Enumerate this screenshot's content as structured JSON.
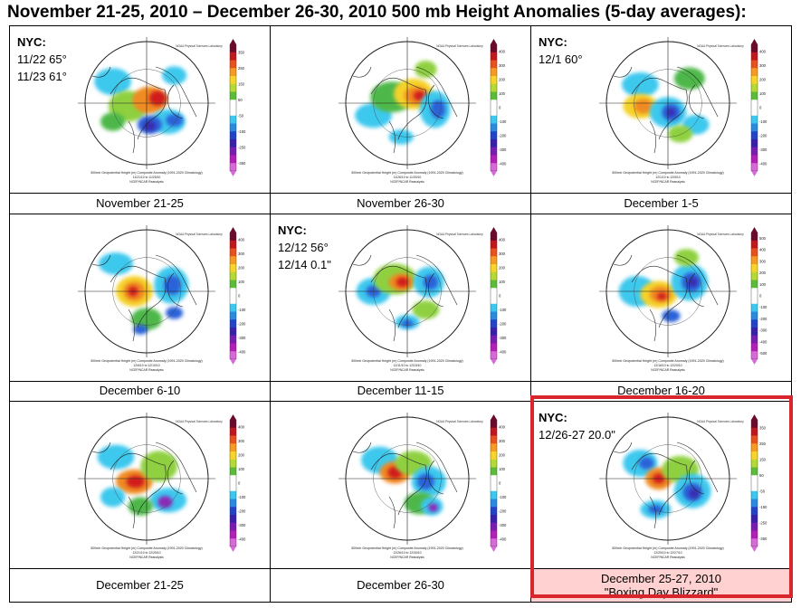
{
  "title": "November 21-25, 2010 – December 26-30, 2010 500 mb Height Anomalies (5-day averages):",
  "panels": [
    {
      "caption": "November 21-25",
      "nyc": {
        "header": "NYC:",
        "lines": [
          "11/22 65°",
          "11/23 61°"
        ]
      },
      "credit": "NOAA Physical Sciences Laboratory",
      "footer": [
        "500mb Geopotential Height (m) Composite Anomaly (1991-2020 Climatology)",
        "11/21/10 to 11/25/10",
        "NCEP/NCAR Reanalysis"
      ],
      "scale": [
        "350",
        "250",
        "150",
        "50",
        "-50",
        "-150",
        "-250",
        "-350"
      ]
    },
    {
      "caption": "November 26-30",
      "nyc": null,
      "credit": "NOAA Physical Sciences Laboratory",
      "footer": [
        "500mb Geopotential Height (m) Composite Anomaly (1991-2020 Climatology)",
        "11/26/10 to 11/30/10",
        "NCEP/NCAR Reanalysis"
      ],
      "scale": [
        "400",
        "300",
        "200",
        "100",
        "0",
        "-100",
        "-200",
        "-300",
        "-400"
      ]
    },
    {
      "caption": "December 1-5",
      "nyc": {
        "header": "NYC:",
        "lines": [
          "12/1 60°"
        ]
      },
      "credit": "NOAA Physical Sciences Laboratory",
      "footer": [
        "500mb Geopotential Height (m) Composite Anomaly (1991-2020 Climatology)",
        "12/1/10 to 12/5/10",
        "NCEP/NCAR Reanalysis"
      ],
      "scale": [
        "400",
        "300",
        "200",
        "100",
        "0",
        "-100",
        "-200",
        "-300",
        "-400"
      ]
    },
    {
      "caption": "December 6-10",
      "nyc": null,
      "credit": "NOAA Physical Sciences Laboratory",
      "footer": [
        "500mb Geopotential Height (m) Composite Anomaly (1991-2020 Climatology)",
        "12/6/10 to 12/10/10",
        "NCEP/NCAR Reanalysis"
      ],
      "scale": [
        "400",
        "300",
        "200",
        "100",
        "0",
        "-100",
        "-200",
        "-300",
        "-400"
      ]
    },
    {
      "caption": "December 11-15",
      "nyc": {
        "header": "NYC:",
        "lines": [
          "12/12 56°",
          "12/14 0.1\""
        ]
      },
      "credit": "NOAA Physical Sciences Laboratory",
      "footer": [
        "500mb Geopotential Height (m) Composite Anomaly (1991-2020 Climatology)",
        "12/11/10 to 12/15/10",
        "NCEP/NCAR Reanalysis"
      ],
      "scale": [
        "400",
        "300",
        "200",
        "100",
        "0",
        "-100",
        "-200",
        "-300",
        "-400"
      ]
    },
    {
      "caption": "December 16-20",
      "nyc": null,
      "credit": "NOAA Physical Sciences Laboratory",
      "footer": [
        "500mb Geopotential Height (m) Composite Anomaly (1991-2020 Climatology)",
        "12/16/10 to 12/20/10",
        "NCEP/NCAR Reanalysis"
      ],
      "scale": [
        "500",
        "400",
        "300",
        "200",
        "100",
        "0",
        "-100",
        "-200",
        "-300",
        "-400",
        "-500"
      ]
    },
    {
      "caption": "December 21-25",
      "nyc": null,
      "credit": "NOAA Physical Sciences Laboratory",
      "footer": [
        "500mb Geopotential Height (m) Composite Anomaly (1991-2020 Climatology)",
        "12/21/10 to 12/25/10",
        "NCEP/NCAR Reanalysis"
      ],
      "scale": [
        "400",
        "300",
        "200",
        "100",
        "0",
        "-100",
        "-200",
        "-300",
        "-400"
      ]
    },
    {
      "caption": "December 26-30",
      "nyc": null,
      "credit": "NOAA Physical Sciences Laboratory",
      "footer": [
        "500mb Geopotential Height (m) Composite Anomaly (1991-2020 Climatology)",
        "12/26/10 to 12/30/10",
        "NCEP/NCAR Reanalysis"
      ],
      "scale": [
        "400",
        "300",
        "200",
        "100",
        "0",
        "-100",
        "-200",
        "-300",
        "-400"
      ]
    },
    {
      "caption": "December 25-27, 2010",
      "caption2": "\"Boxing Day Blizzard\"",
      "nyc": {
        "header": "NYC:",
        "lines": [
          "12/26-27 20.0\""
        ]
      },
      "credit": "NOAA Physical Sciences Laboratory",
      "footer": [
        "500mb Geopotential Height (m) Composite Anomaly (1991-2020 Climatology)",
        "12/25/10 to 12/27/10",
        "NCEP/NCAR Reanalysis"
      ],
      "scale": [
        "350",
        "250",
        "150",
        "50",
        "-50",
        "-150",
        "-250",
        "-350"
      ]
    }
  ],
  "colors": {
    "highlight_border": "#d9262c",
    "highlight_fill": "#ffd1d1"
  },
  "colorbar": [
    "#6b0a2a",
    "#c0161c",
    "#e8501e",
    "#f59a22",
    "#f7d42a",
    "#b5d935",
    "#5dbb3c",
    "#ffffff",
    "#ffffff",
    "#3cc8ee",
    "#2a8ae0",
    "#2444c8",
    "#3a20a8",
    "#7a1cb0",
    "#b21fb5",
    "#d76ad8"
  ]
}
